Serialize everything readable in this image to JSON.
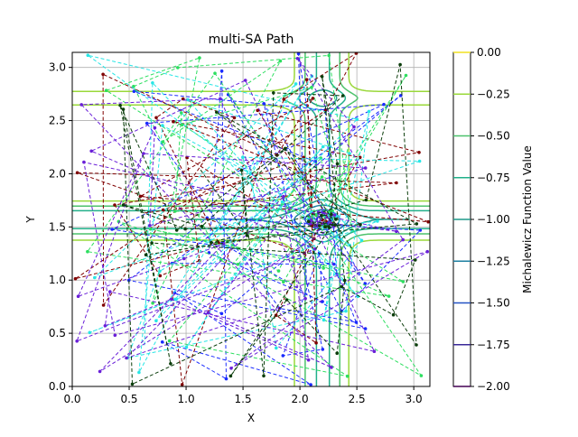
{
  "chart_data": {
    "type": "contour+line",
    "title": "multi-SA Path",
    "xlabel": "X",
    "ylabel": "Y",
    "xlim": [
      0,
      3.14159
    ],
    "ylim": [
      0,
      3.14159
    ],
    "x_ticks": [
      "0.0",
      "0.5",
      "1.0",
      "1.5",
      "2.0",
      "2.5",
      "3.0"
    ],
    "y_ticks": [
      "0.0",
      "0.5",
      "1.0",
      "1.5",
      "2.0",
      "2.5",
      "3.0"
    ],
    "grid": true,
    "colorbar": {
      "label": "Michalewicz Function Value",
      "ticks": [
        "0.00",
        "−0.25",
        "−0.50",
        "−0.75",
        "−1.00",
        "−1.25",
        "−1.50",
        "−1.75",
        "−2.00"
      ],
      "range": [
        -2.0,
        0.0
      ],
      "colors": [
        "#440154",
        "#3b2a98",
        "#2452c4",
        "#1d7fa0",
        "#1f9a8a",
        "#22b08a",
        "#4cc26c",
        "#9ad83a",
        "#f0e020"
      ]
    },
    "contour_levels": [
      -1.75,
      -1.5,
      -1.25,
      -1.0,
      -0.75,
      -0.5,
      -0.25
    ],
    "global_minimum": [
      2.2,
      1.57
    ],
    "path_colors": [
      "#1a2bff",
      "#7f0000",
      "#2ddf60",
      "#28e6e6",
      "#6a1fd8",
      "#0b3d0b"
    ],
    "paths_count": 6
  }
}
